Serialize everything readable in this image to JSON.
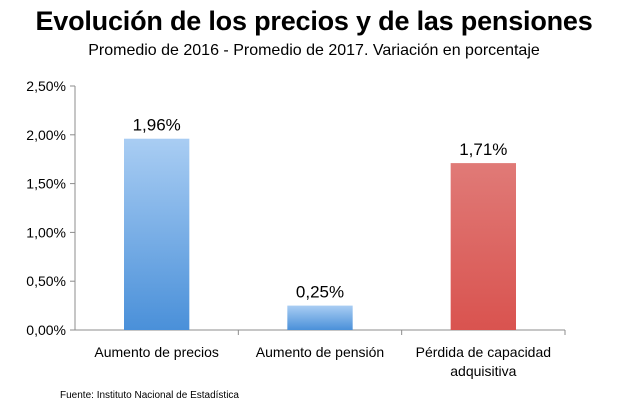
{
  "title": "Evolución de los precios y de las pensiones",
  "subtitle": "Promedio de 2016 - Promedio de 2017. Variación en porcentaje",
  "source": "Fuente: Instituto Nacional de Estadística",
  "colors": {
    "blue": "#4a90d9",
    "blue_light": "#a9cdf3",
    "red": "#d9534f",
    "red_light": "#e07a77",
    "axis": "#8c8c8c"
  },
  "chart_data": {
    "type": "bar",
    "categories": [
      [
        "Aumento de precios"
      ],
      [
        "Aumento de pensión"
      ],
      [
        "Pérdida de capacidad",
        "adquisitiva"
      ]
    ],
    "values": [
      1.96,
      0.25,
      1.71
    ],
    "value_labels": [
      "1,96%",
      "0,25%",
      "1,71%"
    ],
    "bar_colors": [
      "blue",
      "blue",
      "red"
    ],
    "ylim": [
      0,
      2.5
    ],
    "yticks": [
      0,
      0.5,
      1.0,
      1.5,
      2.0,
      2.5
    ],
    "ytick_labels": [
      "0,00%",
      "0,50%",
      "1,00%",
      "1,50%",
      "2,00%",
      "2,50%"
    ],
    "grid": false,
    "legend": "none"
  }
}
